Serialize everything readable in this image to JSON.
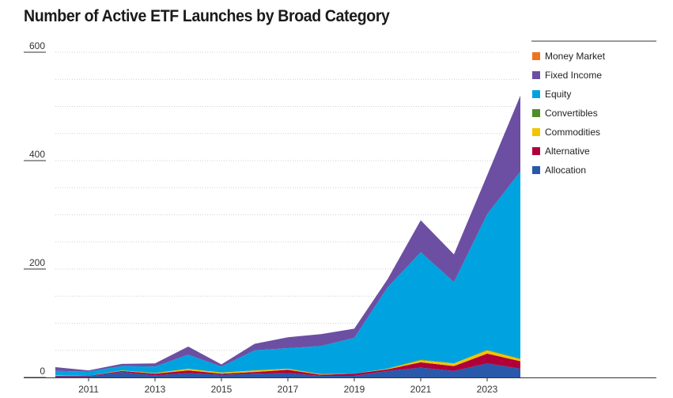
{
  "title": "Number of Active ETF Launches by Broad Category",
  "chart_data": {
    "type": "area",
    "stacked": true,
    "title": "Number of Active ETF Launches by Broad Category",
    "xlabel": "",
    "ylabel": "",
    "x": [
      2010,
      2011,
      2012,
      2013,
      2014,
      2015,
      2016,
      2017,
      2018,
      2019,
      2020,
      2021,
      2022,
      2023,
      2024
    ],
    "x_tick_labels": [
      "2011",
      "2013",
      "2015",
      "2017",
      "2019",
      "2021",
      "2023"
    ],
    "x_tick_values": [
      2011,
      2013,
      2015,
      2017,
      2019,
      2021,
      2023
    ],
    "ylim": [
      0,
      600
    ],
    "y_ticks": [
      0,
      200,
      400,
      600
    ],
    "y_tick_labels": [
      "0",
      "200",
      "400",
      "600"
    ],
    "grid": true,
    "legend_position": "right",
    "series": [
      {
        "name": "Allocation",
        "color": "#2a58aa",
        "values": [
          2,
          2,
          10,
          4,
          8,
          5,
          7,
          8,
          3,
          3,
          12,
          18,
          12,
          26,
          16
        ]
      },
      {
        "name": "Alternative",
        "color": "#b0003a",
        "values": [
          1,
          1,
          2,
          3,
          5,
          2,
          3,
          6,
          2,
          4,
          3,
          10,
          9,
          18,
          14
        ]
      },
      {
        "name": "Commodities",
        "color": "#f2c400",
        "values": [
          1,
          0,
          1,
          1,
          3,
          2,
          3,
          2,
          1,
          0,
          1,
          4,
          5,
          6,
          4
        ]
      },
      {
        "name": "Convertibles",
        "color": "#4e8c2a",
        "values": [
          0,
          0,
          0,
          0,
          0,
          0,
          0,
          0,
          0,
          0,
          0,
          1,
          0,
          1,
          1
        ]
      },
      {
        "name": "Equity",
        "color": "#00a3e0",
        "values": [
          8,
          8,
          8,
          12,
          26,
          11,
          37,
          38,
          52,
          66,
          150,
          198,
          150,
          250,
          345
        ]
      },
      {
        "name": "Fixed Income",
        "color": "#6c4fa3",
        "values": [
          7,
          2,
          4,
          6,
          15,
          4,
          12,
          20,
          22,
          17,
          15,
          59,
          51,
          72,
          140
        ]
      },
      {
        "name": "Money Market",
        "color": "#f0731e",
        "values": [
          0,
          0,
          0,
          0,
          0,
          0,
          0,
          0,
          0,
          0,
          0,
          0,
          0,
          0,
          0
        ]
      }
    ]
  }
}
